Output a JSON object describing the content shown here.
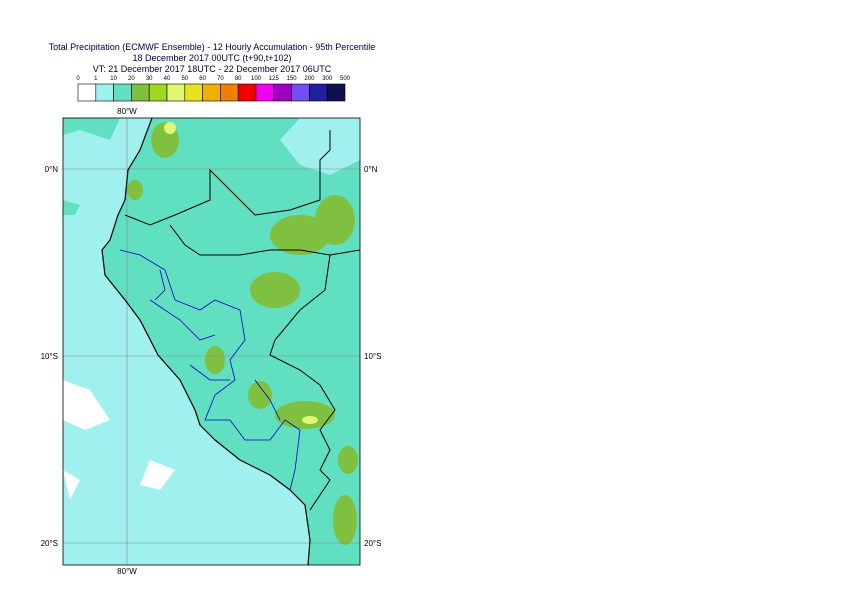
{
  "header": {
    "title": "Total Precipitation (ECMWF Ensemble) - 12 Hourly Accumulation - 95th Percentile",
    "base_time": "18 December 2017 00UTC (t+90,t+102)",
    "valid_time": "VT: 21 December 2017 18UTC - 22 December 2017 06UTC"
  },
  "legend": {
    "labels": [
      0,
      1,
      10,
      20,
      30,
      40,
      50,
      60,
      70,
      80,
      100,
      125,
      150,
      200,
      300,
      500
    ],
    "colors": [
      "#ffffff",
      "#a0f0f0",
      "#60e0c0",
      "#80c040",
      "#a0d820",
      "#e0f870",
      "#e8e020",
      "#f0b000",
      "#f08000",
      "#f00000",
      "#f000f0",
      "#a000c0",
      "#7050f0",
      "#2020a0",
      "#101050"
    ]
  },
  "map": {
    "lon_top": "80°W",
    "lon_bottom": "80°W",
    "lat_labels": [
      "0°N",
      "10°S",
      "20°S"
    ]
  }
}
